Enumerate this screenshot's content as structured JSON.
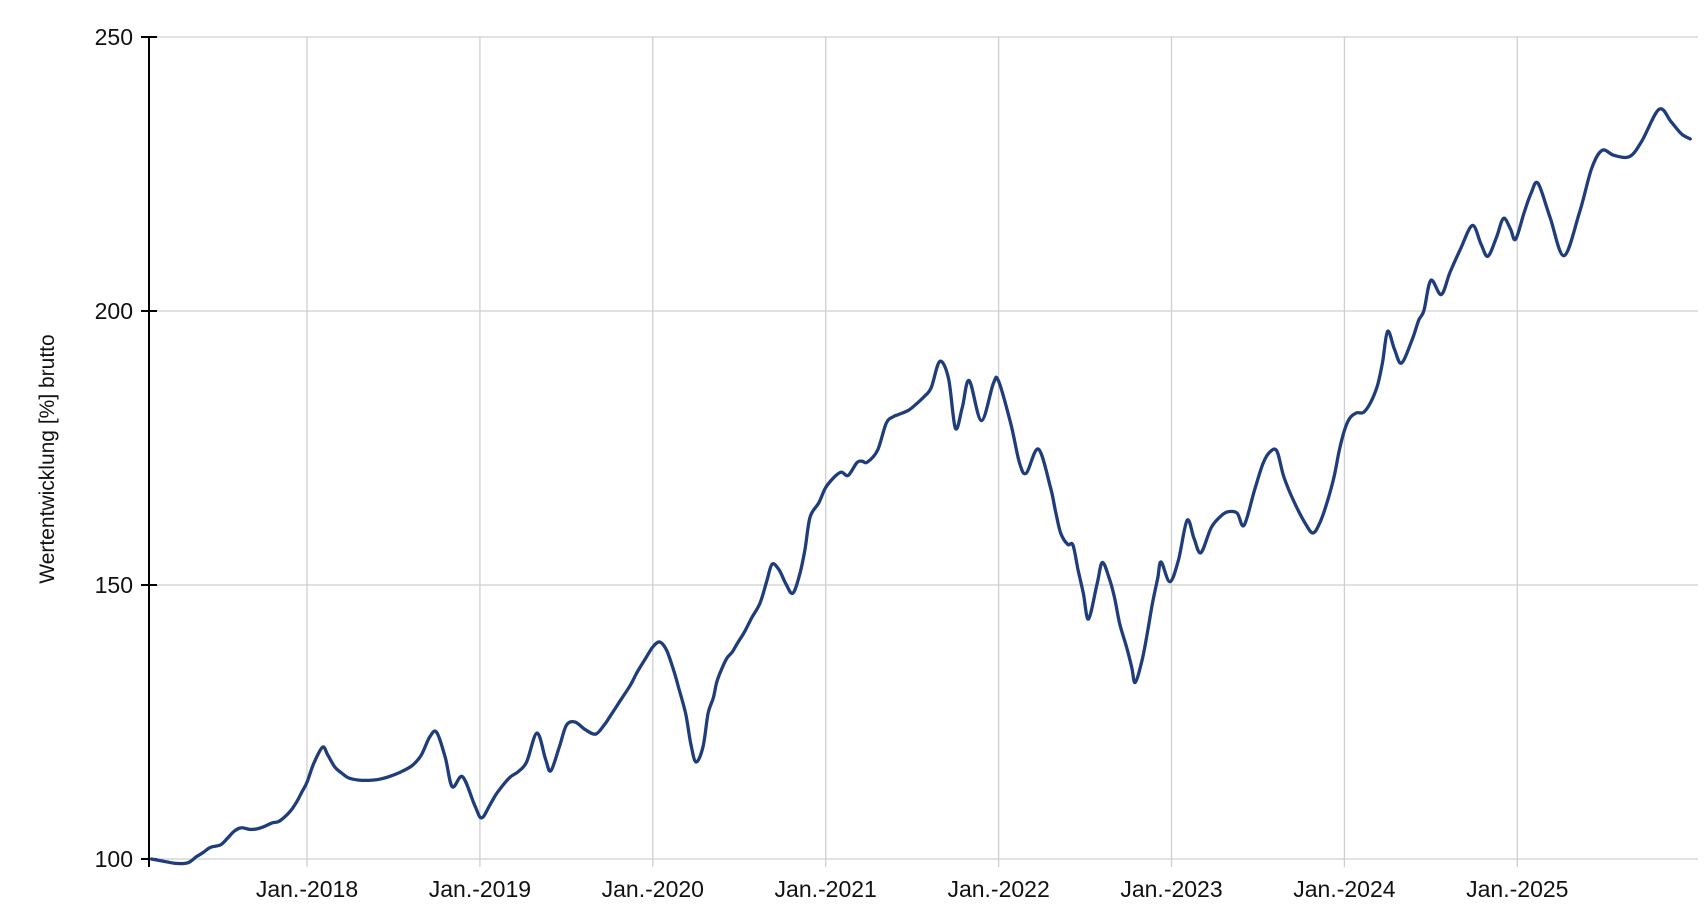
{
  "chart_data": {
    "type": "line",
    "title": "",
    "xlabel": "",
    "ylabel": "Wertentwicklung [%] brutto",
    "legend": "none",
    "grid": true,
    "x_tick_labels": [
      "Jan.-2018",
      "Jan.-2019",
      "Jan.-2020",
      "Jan.-2021",
      "Jan.-2022",
      "Jan.-2023",
      "Jan.-2024",
      "Jan.-2025"
    ],
    "x_tick_values": [
      2018,
      2019,
      2020,
      2021,
      2022,
      2023,
      2024,
      2025
    ],
    "y_ticks": [
      100,
      150,
      200,
      250
    ],
    "x_domain": [
      2017.08,
      2026.04
    ],
    "y_domain": [
      100,
      250
    ],
    "colors": {
      "line": "#1f3d7a",
      "grid": "#cfcfcf",
      "axis": "#000000",
      "text": "#111111",
      "background": "#ffffff"
    },
    "series": [
      {
        "name": "Wertentwicklung [%] brutto",
        "points": [
          [
            2017.1,
            100.0
          ],
          [
            2017.17,
            99.6
          ],
          [
            2017.24,
            99.2
          ],
          [
            2017.31,
            99.3
          ],
          [
            2017.36,
            100.4
          ],
          [
            2017.4,
            101.2
          ],
          [
            2017.44,
            102.1
          ],
          [
            2017.5,
            102.6
          ],
          [
            2017.54,
            103.8
          ],
          [
            2017.58,
            105.1
          ],
          [
            2017.62,
            105.7
          ],
          [
            2017.67,
            105.4
          ],
          [
            2017.71,
            105.5
          ],
          [
            2017.75,
            105.9
          ],
          [
            2017.8,
            106.6
          ],
          [
            2017.84,
            106.9
          ],
          [
            2017.9,
            108.6
          ],
          [
            2017.94,
            110.4
          ],
          [
            2017.97,
            112.2
          ],
          [
            2018.0,
            114.0
          ],
          [
            2018.04,
            117.5
          ],
          [
            2018.09,
            120.4
          ],
          [
            2018.12,
            119.0
          ],
          [
            2018.16,
            116.8
          ],
          [
            2018.2,
            115.7
          ],
          [
            2018.24,
            114.8
          ],
          [
            2018.3,
            114.4
          ],
          [
            2018.38,
            114.4
          ],
          [
            2018.44,
            114.7
          ],
          [
            2018.49,
            115.2
          ],
          [
            2018.55,
            116.0
          ],
          [
            2018.61,
            117.1
          ],
          [
            2018.66,
            118.9
          ],
          [
            2018.71,
            122.3
          ],
          [
            2018.75,
            123.1
          ],
          [
            2018.8,
            118.5
          ],
          [
            2018.84,
            113.2
          ],
          [
            2018.9,
            115.0
          ],
          [
            2018.97,
            109.8
          ],
          [
            2019.01,
            107.5
          ],
          [
            2019.06,
            110.0
          ],
          [
            2019.1,
            112.1
          ],
          [
            2019.17,
            114.8
          ],
          [
            2019.22,
            115.9
          ],
          [
            2019.27,
            117.7
          ],
          [
            2019.33,
            123.0
          ],
          [
            2019.38,
            118.2
          ],
          [
            2019.41,
            116.1
          ],
          [
            2019.46,
            120.5
          ],
          [
            2019.5,
            124.4
          ],
          [
            2019.55,
            125.0
          ],
          [
            2019.61,
            123.6
          ],
          [
            2019.67,
            122.8
          ],
          [
            2019.72,
            124.5
          ],
          [
            2019.75,
            125.9
          ],
          [
            2019.81,
            128.8
          ],
          [
            2019.87,
            131.7
          ],
          [
            2019.91,
            134.1
          ],
          [
            2019.96,
            136.7
          ],
          [
            2020.0,
            138.7
          ],
          [
            2020.04,
            139.6
          ],
          [
            2020.08,
            138.1
          ],
          [
            2020.12,
            134.5
          ],
          [
            2020.15,
            131.2
          ],
          [
            2020.19,
            126.5
          ],
          [
            2020.22,
            121.0
          ],
          [
            2020.25,
            117.7
          ],
          [
            2020.29,
            120.4
          ],
          [
            2020.32,
            126.6
          ],
          [
            2020.35,
            129.4
          ],
          [
            2020.37,
            132.3
          ],
          [
            2020.4,
            134.8
          ],
          [
            2020.43,
            136.7
          ],
          [
            2020.46,
            137.8
          ],
          [
            2020.49,
            139.4
          ],
          [
            2020.53,
            141.4
          ],
          [
            2020.57,
            143.9
          ],
          [
            2020.62,
            146.7
          ],
          [
            2020.66,
            150.8
          ],
          [
            2020.69,
            153.8
          ],
          [
            2020.73,
            152.8
          ],
          [
            2020.77,
            150.2
          ],
          [
            2020.81,
            148.5
          ],
          [
            2020.85,
            152.0
          ],
          [
            2020.88,
            156.5
          ],
          [
            2020.91,
            162.4
          ],
          [
            2020.96,
            165.0
          ],
          [
            2021.0,
            167.8
          ],
          [
            2021.05,
            169.7
          ],
          [
            2021.09,
            170.6
          ],
          [
            2021.13,
            170.0
          ],
          [
            2021.18,
            172.3
          ],
          [
            2021.21,
            172.6
          ],
          [
            2021.24,
            172.4
          ],
          [
            2021.3,
            174.6
          ],
          [
            2021.35,
            179.5
          ],
          [
            2021.39,
            180.7
          ],
          [
            2021.42,
            181.1
          ],
          [
            2021.48,
            181.9
          ],
          [
            2021.53,
            183.2
          ],
          [
            2021.57,
            184.4
          ],
          [
            2021.61,
            186.0
          ],
          [
            2021.66,
            190.8
          ],
          [
            2021.71,
            187.7
          ],
          [
            2021.75,
            178.6
          ],
          [
            2021.79,
            182.4
          ],
          [
            2021.83,
            187.3
          ],
          [
            2021.9,
            180.0
          ],
          [
            2021.97,
            186.8
          ],
          [
            2022.0,
            187.2
          ],
          [
            2022.07,
            179.5
          ],
          [
            2022.12,
            172.4
          ],
          [
            2022.16,
            170.4
          ],
          [
            2022.23,
            174.8
          ],
          [
            2022.3,
            167.8
          ],
          [
            2022.33,
            163.3
          ],
          [
            2022.36,
            159.4
          ],
          [
            2022.4,
            157.4
          ],
          [
            2022.43,
            157.3
          ],
          [
            2022.46,
            152.7
          ],
          [
            2022.49,
            148.5
          ],
          [
            2022.52,
            143.8
          ],
          [
            2022.57,
            150.3
          ],
          [
            2022.6,
            154.1
          ],
          [
            2022.64,
            151.2
          ],
          [
            2022.67,
            147.8
          ],
          [
            2022.7,
            143.0
          ],
          [
            2022.74,
            138.7
          ],
          [
            2022.77,
            135.0
          ],
          [
            2022.79,
            132.2
          ],
          [
            2022.83,
            136.3
          ],
          [
            2022.86,
            141.2
          ],
          [
            2022.89,
            146.7
          ],
          [
            2022.92,
            151.2
          ],
          [
            2022.94,
            154.2
          ],
          [
            2022.99,
            150.6
          ],
          [
            2023.04,
            154.5
          ],
          [
            2023.09,
            161.8
          ],
          [
            2023.13,
            158.5
          ],
          [
            2023.17,
            155.9
          ],
          [
            2023.23,
            160.5
          ],
          [
            2023.29,
            162.7
          ],
          [
            2023.33,
            163.4
          ],
          [
            2023.38,
            163.1
          ],
          [
            2023.42,
            160.9
          ],
          [
            2023.48,
            167.3
          ],
          [
            2023.53,
            172.2
          ],
          [
            2023.57,
            174.3
          ],
          [
            2023.61,
            174.4
          ],
          [
            2023.65,
            169.7
          ],
          [
            2023.71,
            165.1
          ],
          [
            2023.78,
            160.9
          ],
          [
            2023.82,
            159.5
          ],
          [
            2023.86,
            161.5
          ],
          [
            2023.9,
            165.1
          ],
          [
            2023.94,
            169.7
          ],
          [
            2023.97,
            174.5
          ],
          [
            2024.0,
            178.2
          ],
          [
            2024.03,
            180.4
          ],
          [
            2024.07,
            181.4
          ],
          [
            2024.11,
            181.5
          ],
          [
            2024.15,
            183.2
          ],
          [
            2024.19,
            186.3
          ],
          [
            2024.22,
            190.5
          ],
          [
            2024.25,
            196.3
          ],
          [
            2024.29,
            193.0
          ],
          [
            2024.33,
            190.5
          ],
          [
            2024.39,
            194.6
          ],
          [
            2024.43,
            198.3
          ],
          [
            2024.46,
            200.1
          ],
          [
            2024.5,
            205.6
          ],
          [
            2024.56,
            203.0
          ],
          [
            2024.61,
            207.0
          ],
          [
            2024.67,
            211.2
          ],
          [
            2024.74,
            215.6
          ],
          [
            2024.79,
            212.2
          ],
          [
            2024.83,
            210.0
          ],
          [
            2024.88,
            213.5
          ],
          [
            2024.92,
            216.9
          ],
          [
            2024.96,
            215.0
          ],
          [
            2024.99,
            213.1
          ],
          [
            2025.04,
            218.0
          ],
          [
            2025.08,
            221.5
          ],
          [
            2025.12,
            223.3
          ],
          [
            2025.19,
            217.0
          ],
          [
            2025.27,
            210.1
          ],
          [
            2025.36,
            218.0
          ],
          [
            2025.43,
            226.0
          ],
          [
            2025.49,
            229.3
          ],
          [
            2025.56,
            228.4
          ],
          [
            2025.65,
            228.2
          ],
          [
            2025.72,
            231.0
          ],
          [
            2025.82,
            236.8
          ],
          [
            2025.89,
            234.5
          ],
          [
            2025.95,
            232.3
          ],
          [
            2026.0,
            231.4
          ]
        ]
      }
    ]
  }
}
